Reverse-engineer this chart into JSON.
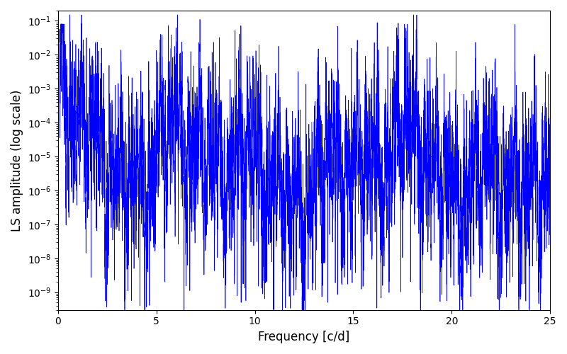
{
  "xlabel": "Frequency [c/d]",
  "ylabel": "LS amplitude (log scale)",
  "xlim": [
    0,
    25
  ],
  "ylim": [
    3e-10,
    0.2
  ],
  "line_color": "#0000ff",
  "line_width": 0.5,
  "yscale": "log",
  "background_color": "#ffffff",
  "figsize": [
    8.0,
    5.0
  ],
  "dpi": 100,
  "seed": 42,
  "freq_max": 25.0,
  "N": 8000
}
